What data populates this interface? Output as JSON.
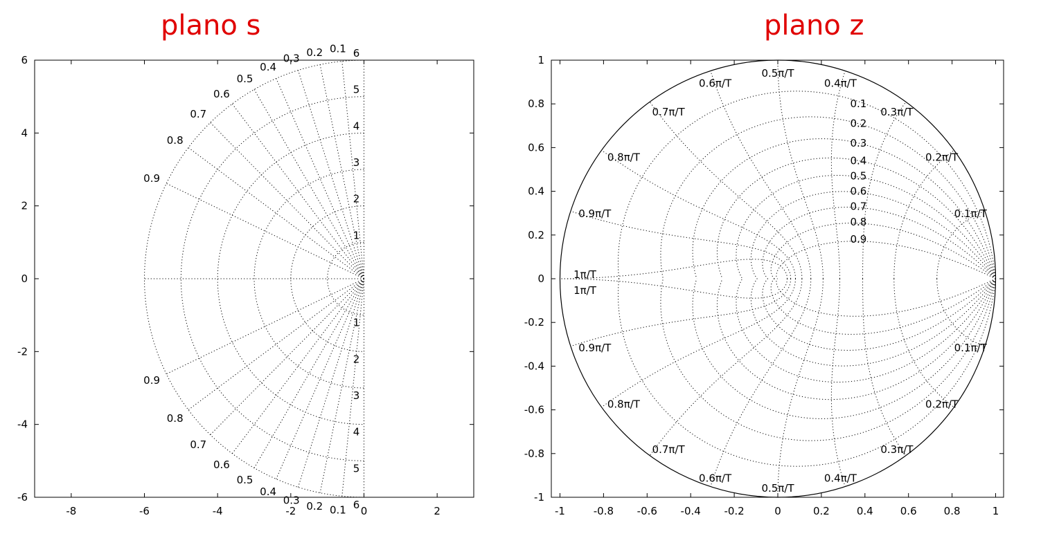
{
  "chart_data": [
    {
      "type": "scatter",
      "title": "plano s",
      "xlabel": "",
      "ylabel": "",
      "xlim": [
        -9,
        3
      ],
      "ylim": [
        -6,
        6
      ],
      "grid": true,
      "x_ticks": [
        "-8",
        "-6",
        "-4",
        "-2",
        "0",
        "2"
      ],
      "y_ticks": [
        "6",
        "4",
        "2",
        "0",
        "-2",
        "-4",
        "-6"
      ],
      "zeta_values": [
        0.1,
        0.2,
        0.3,
        0.4,
        0.5,
        0.6,
        0.7,
        0.8,
        0.9
      ],
      "zeta_labels": [
        "0.1",
        "0.2",
        "0.3",
        "0.4",
        "0.5",
        "0.6",
        "0.7",
        "0.8",
        "0.9"
      ],
      "wn_values": [
        1,
        2,
        3,
        4,
        5,
        6
      ],
      "wn_labels": [
        "1",
        "2",
        "3",
        "4",
        "5",
        "6"
      ]
    },
    {
      "type": "scatter",
      "title": "plano z",
      "xlabel": "",
      "ylabel": "",
      "xlim": [
        -1,
        1
      ],
      "ylim": [
        -1,
        1
      ],
      "grid": true,
      "x_ticks": [
        "-1",
        "-0.8",
        "-0.6",
        "-0.4",
        "-0.2",
        "0",
        "0.2",
        "0.4",
        "0.6",
        "0.8",
        "1"
      ],
      "y_ticks": [
        "1",
        "0.8",
        "0.6",
        "0.4",
        "0.2",
        "0",
        "-0.2",
        "-0.4",
        "-0.6",
        "-0.8",
        "-1"
      ],
      "zeta_values": [
        0.1,
        0.2,
        0.3,
        0.4,
        0.5,
        0.6,
        0.7,
        0.8,
        0.9
      ],
      "zeta_labels": [
        "0.1",
        "0.2",
        "0.3",
        "0.4",
        "0.5",
        "0.6",
        "0.7",
        "0.8",
        "0.9"
      ],
      "wn_values": [
        0.1,
        0.2,
        0.3,
        0.4,
        0.5,
        0.6,
        0.7,
        0.8,
        0.9,
        1
      ],
      "wn_labels": [
        "0.1",
        "0.2",
        "0.3",
        "0.4",
        "0.5",
        "0.6",
        "0.7",
        "0.8",
        "0.9",
        "1"
      ],
      "wn_unit": "π/T"
    }
  ]
}
